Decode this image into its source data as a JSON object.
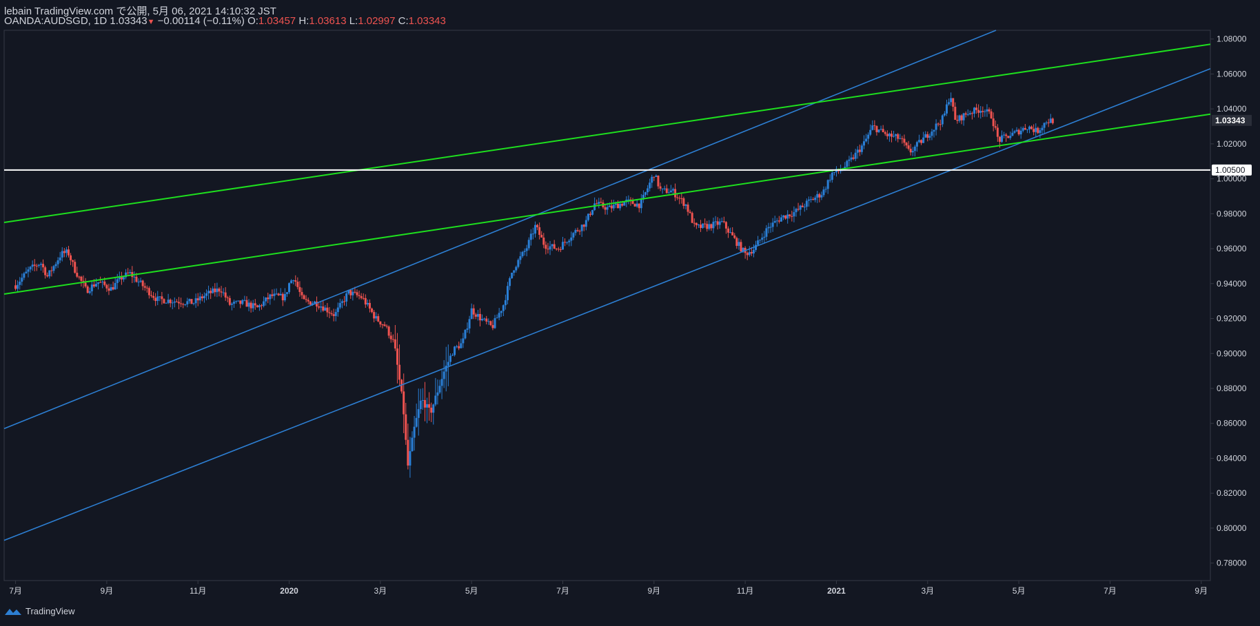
{
  "header": {
    "published_line": "lebain TradingView.com で公開, 5月 06, 2021 14:10:32 JST",
    "symbol": "OANDA:AUDSGD, 1D",
    "last": "1.03343",
    "change": "−0.00114 (−0.11%)",
    "open_label": "O:",
    "open": "1.03457",
    "high_label": "H:",
    "high": "1.03613",
    "low_label": "L:",
    "low": "1.02997",
    "close_label": "C:",
    "close": "1.03343"
  },
  "footer": {
    "brand": "TradingView"
  },
  "colors": {
    "background": "#131722",
    "up": "#2a7fd6",
    "down": "#ef5350",
    "trend_blue": "#2d7fd3",
    "trend_green": "#1ee01e",
    "hline": "#ffffff",
    "axis_text": "#d1d4dc",
    "border": "#363a45"
  },
  "chart_data": {
    "type": "candlestick",
    "symbol": "OANDA:AUDSGD",
    "timeframe": "1D",
    "ylim": [
      0.77,
      1.085
    ],
    "y_ticks": [
      "0.78000",
      "0.80000",
      "0.82000",
      "0.84000",
      "0.86000",
      "0.88000",
      "0.90000",
      "0.92000",
      "0.94000",
      "0.96000",
      "0.98000",
      "1.00000",
      "1.02000",
      "1.04000",
      "1.06000",
      "1.08000"
    ],
    "x_ticks": [
      "7月",
      "9月",
      "11月",
      "2020",
      "3月",
      "5月",
      "7月",
      "9月",
      "11月",
      "2021",
      "3月",
      "5月",
      "7月",
      "9月"
    ],
    "x_tick_index": [
      0,
      2,
      4,
      6,
      8,
      10,
      12,
      14,
      16,
      18,
      20,
      22,
      24,
      26
    ],
    "x_range_months": [
      -0.25,
      26.2
    ],
    "last_price_label": "1.03343",
    "horizontal_line": {
      "value": 1.005,
      "label": "1.00500"
    },
    "trendlines": [
      {
        "color": "blue",
        "from": [
          -0.25,
          0.857
        ],
        "to": [
          21.5,
          1.085
        ]
      },
      {
        "color": "blue",
        "from": [
          -0.25,
          0.793
        ],
        "to": [
          26.2,
          1.063
        ]
      },
      {
        "color": "green",
        "from": [
          -0.25,
          0.975
        ],
        "to": [
          26.2,
          1.077
        ]
      },
      {
        "color": "green",
        "from": [
          -0.25,
          0.934
        ],
        "to": [
          26.2,
          1.037
        ]
      }
    ],
    "price_path": [
      [
        0.0,
        0.939
      ],
      [
        0.3,
        0.948
      ],
      [
        0.55,
        0.952
      ],
      [
        0.7,
        0.944
      ],
      [
        1.0,
        0.957
      ],
      [
        1.15,
        0.958
      ],
      [
        1.3,
        0.948
      ],
      [
        1.55,
        0.936
      ],
      [
        1.8,
        0.941
      ],
      [
        2.1,
        0.937
      ],
      [
        2.3,
        0.943
      ],
      [
        2.5,
        0.946
      ],
      [
        2.7,
        0.941
      ],
      [
        3.1,
        0.931
      ],
      [
        3.5,
        0.93
      ],
      [
        3.9,
        0.929
      ],
      [
        4.2,
        0.934
      ],
      [
        4.5,
        0.937
      ],
      [
        4.7,
        0.928
      ],
      [
        5.0,
        0.929
      ],
      [
        5.3,
        0.926
      ],
      [
        5.6,
        0.933
      ],
      [
        5.9,
        0.932
      ],
      [
        6.0,
        0.94
      ],
      [
        6.1,
        0.944
      ],
      [
        6.3,
        0.93
      ],
      [
        6.6,
        0.929
      ],
      [
        7.0,
        0.922
      ],
      [
        7.3,
        0.935
      ],
      [
        7.6,
        0.932
      ],
      [
        7.9,
        0.92
      ],
      [
        8.1,
        0.916
      ],
      [
        8.3,
        0.906
      ],
      [
        8.5,
        0.87
      ],
      [
        8.6,
        0.835
      ],
      [
        8.75,
        0.858
      ],
      [
        8.9,
        0.874
      ],
      [
        9.1,
        0.866
      ],
      [
        9.25,
        0.878
      ],
      [
        9.4,
        0.89
      ],
      [
        9.6,
        0.902
      ],
      [
        9.8,
        0.906
      ],
      [
        10.0,
        0.925
      ],
      [
        10.2,
        0.92
      ],
      [
        10.45,
        0.915
      ],
      [
        10.7,
        0.928
      ],
      [
        10.9,
        0.948
      ],
      [
        11.2,
        0.96
      ],
      [
        11.4,
        0.973
      ],
      [
        11.6,
        0.962
      ],
      [
        11.9,
        0.96
      ],
      [
        12.2,
        0.968
      ],
      [
        12.5,
        0.975
      ],
      [
        12.7,
        0.986
      ],
      [
        13.0,
        0.983
      ],
      [
        13.4,
        0.987
      ],
      [
        13.7,
        0.985
      ],
      [
        14.0,
        1.003
      ],
      [
        14.15,
        0.993
      ],
      [
        14.4,
        0.993
      ],
      [
        14.7,
        0.985
      ],
      [
        14.9,
        0.972
      ],
      [
        15.2,
        0.973
      ],
      [
        15.5,
        0.975
      ],
      [
        15.8,
        0.964
      ],
      [
        16.0,
        0.957
      ],
      [
        16.2,
        0.96
      ],
      [
        16.5,
        0.972
      ],
      [
        16.8,
        0.978
      ],
      [
        17.1,
        0.981
      ],
      [
        17.4,
        0.987
      ],
      [
        17.7,
        0.992
      ],
      [
        17.9,
        1.003
      ],
      [
        18.1,
        1.005
      ],
      [
        18.3,
        1.01
      ],
      [
        18.6,
        1.02
      ],
      [
        18.8,
        1.03
      ],
      [
        19.1,
        1.025
      ],
      [
        19.4,
        1.023
      ],
      [
        19.6,
        1.015
      ],
      [
        19.8,
        1.02
      ],
      [
        20.1,
        1.028
      ],
      [
        20.35,
        1.035
      ],
      [
        20.5,
        1.049
      ],
      [
        20.6,
        1.033
      ],
      [
        20.9,
        1.038
      ],
      [
        21.2,
        1.04
      ],
      [
        21.4,
        1.036
      ],
      [
        21.55,
        1.022
      ],
      [
        21.9,
        1.026
      ],
      [
        22.2,
        1.03
      ],
      [
        22.4,
        1.027
      ],
      [
        22.6,
        1.033
      ],
      [
        22.75,
        1.0334
      ]
    ]
  }
}
